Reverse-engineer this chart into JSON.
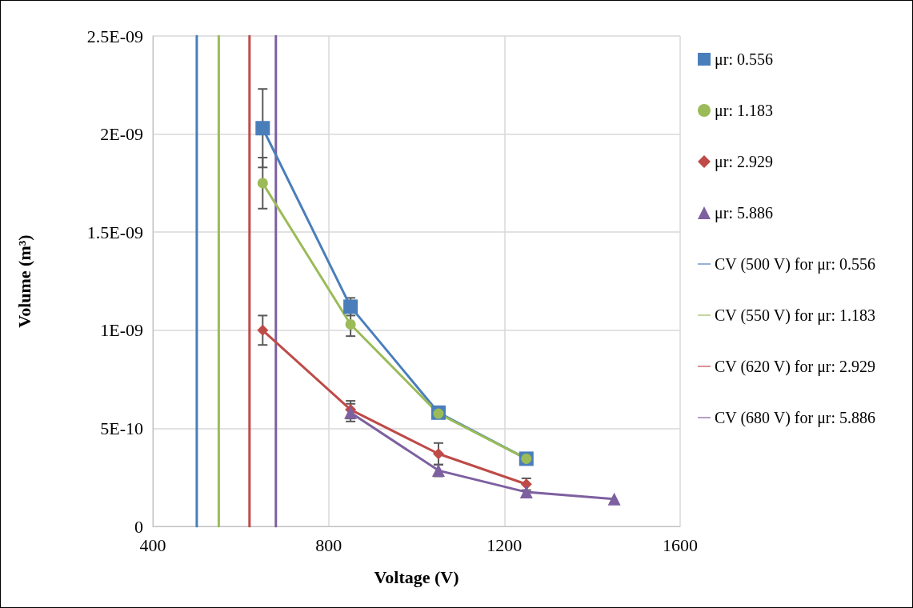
{
  "chart_data": {
    "type": "line",
    "xlabel": "Voltage (V)",
    "ylabel": "Volume (m³)",
    "xlim": [
      400,
      1600
    ],
    "xticks": [
      400,
      800,
      1200,
      1600
    ],
    "ylim": [
      0,
      2.5e-09
    ],
    "yticks": [
      0,
      {
        "value": 5e-10,
        "label": "5E-10"
      },
      {
        "value": 1e-09,
        "label": "1E-09"
      },
      {
        "value": 1.5e-09,
        "label": "1.5E-09"
      },
      {
        "value": 2e-09,
        "label": "2E-09"
      },
      {
        "value": 2.5e-09,
        "label": "2.5E-09"
      }
    ],
    "grid": true,
    "legend": "right",
    "series": [
      {
        "name": "μr: 0.556",
        "color": "#4a7ebb",
        "marker": "square",
        "x": [
          650,
          850,
          1050,
          1250
        ],
        "values": [
          2.03e-09,
          1.12e-09,
          5.8e-10,
          3.45e-10
        ],
        "errors": [
          2e-10,
          4.5e-11,
          null,
          null
        ]
      },
      {
        "name": "μr: 1.183",
        "color": "#9bbb59",
        "marker": "circle",
        "x": [
          650,
          850,
          1050,
          1250
        ],
        "values": [
          1.75e-09,
          1.03e-09,
          5.75e-10,
          3.45e-10
        ],
        "errors": [
          1.3e-10,
          6e-11,
          null,
          null
        ]
      },
      {
        "name": "μr: 2.929",
        "color": "#be4b48",
        "marker": "diamond",
        "x": [
          650,
          850,
          1050,
          1250
        ],
        "values": [
          1e-09,
          5.95e-10,
          3.7e-10,
          2.15e-10
        ],
        "errors": [
          7.5e-11,
          4.5e-11,
          5.5e-11,
          3e-11
        ]
      },
      {
        "name": "μr: 5.886",
        "color": "#7d60a0",
        "marker": "triangle",
        "x": [
          850,
          1050,
          1250,
          1450
        ],
        "values": [
          5.8e-10,
          2.85e-10,
          1.75e-10,
          1.4e-10
        ],
        "errors": [
          4.5e-11,
          3e-11,
          null,
          null
        ]
      },
      {
        "name": "CV (500 V) for μr: 0.556",
        "color": "#4a7ebb",
        "marker": "none",
        "x": [
          500,
          500
        ],
        "values": [
          0,
          2.5e-09
        ]
      },
      {
        "name": "CV (550 V) for μr: 1.183",
        "color": "#9bbb59",
        "marker": "none",
        "x": [
          550,
          550
        ],
        "values": [
          0,
          2.5e-09
        ]
      },
      {
        "name": "CV (620 V) for μr: 2.929",
        "color": "#be4b48",
        "marker": "none",
        "x": [
          620,
          620
        ],
        "values": [
          0,
          2.5e-09
        ]
      },
      {
        "name": "CV (680 V) for μr: 5.886",
        "color": "#7d60a0",
        "marker": "none",
        "x": [
          680,
          680
        ],
        "values": [
          0,
          2.5e-09
        ]
      }
    ]
  }
}
